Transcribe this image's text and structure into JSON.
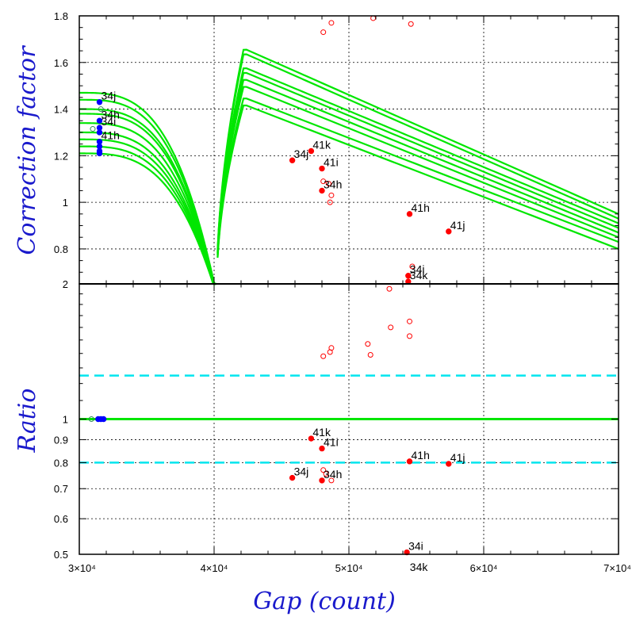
{
  "chart_data": [
    {
      "type": "scatter",
      "panel": "top",
      "ylabel": "Correction factor",
      "ylim": [
        0.65,
        1.8
      ],
      "yticks": [
        0.8,
        1,
        1.2,
        1.4,
        1.6,
        1.8
      ],
      "ytick_labels": [
        "0.8",
        "1",
        "1.2",
        "1.4",
        "1.6",
        "1.8"
      ],
      "grid": true,
      "colors": {
        "curve": "#00e600",
        "red": "#ff0000",
        "blue": "#0000ff",
        "teal": "#2e8b57"
      },
      "curve_band": {
        "asymptote_x": 40200,
        "left_start_x": 30000,
        "peak_x": 42200,
        "right_end_x": 70000,
        "left_start_values": [
          1.21,
          1.24,
          1.27,
          1.3,
          1.34,
          1.38,
          1.4,
          1.44,
          1.47
        ],
        "peak_values": [
          1.42,
          1.45,
          1.5,
          1.53,
          1.56,
          1.58,
          1.64,
          1.66
        ],
        "end_values": [
          0.8,
          0.83,
          0.85,
          0.87,
          0.89,
          0.91,
          0.93,
          0.95
        ]
      },
      "labeled_points": [
        {
          "x": 31500,
          "y": 1.43,
          "label": "34j",
          "color": "blue"
        },
        {
          "x": 31500,
          "y": 1.35,
          "label": "34h",
          "color": "blue"
        },
        {
          "x": 31500,
          "y": 1.32,
          "label": "34i",
          "color": "blue"
        },
        {
          "x": 31500,
          "y": 1.26,
          "label": "41h",
          "color": "blue"
        },
        {
          "x": 45800,
          "y": 1.18,
          "label": "34j",
          "color": "red"
        },
        {
          "x": 47200,
          "y": 1.22,
          "label": "41k",
          "color": "red"
        },
        {
          "x": 48000,
          "y": 1.145,
          "label": "41i",
          "color": "red"
        },
        {
          "x": 48000,
          "y": 1.05,
          "label": "34h",
          "color": "red"
        },
        {
          "x": 54500,
          "y": 0.95,
          "label": "41h",
          "color": "red"
        },
        {
          "x": 57400,
          "y": 0.875,
          "label": "41j",
          "color": "red"
        },
        {
          "x": 54400,
          "y": 0.685,
          "label": "34i",
          "color": "red"
        },
        {
          "x": 54400,
          "y": 0.66,
          "label": "34k",
          "color": "red"
        }
      ],
      "filled_points": [
        {
          "x": 31500,
          "y": 1.24,
          "color": "blue"
        },
        {
          "x": 31500,
          "y": 1.22,
          "color": "blue"
        },
        {
          "x": 31500,
          "y": 1.21,
          "color": "blue"
        },
        {
          "x": 31500,
          "y": 1.3,
          "color": "blue"
        }
      ],
      "open_points": [
        {
          "x": 31000,
          "y": 1.315,
          "color": "teal"
        },
        {
          "x": 31600,
          "y": 1.4,
          "color": "teal"
        },
        {
          "x": 48100,
          "y": 1.73,
          "color": "red"
        },
        {
          "x": 48700,
          "y": 1.77,
          "color": "red"
        },
        {
          "x": 51800,
          "y": 1.79,
          "color": "red"
        },
        {
          "x": 54600,
          "y": 1.765,
          "color": "red"
        },
        {
          "x": 48100,
          "y": 1.09,
          "color": "red"
        },
        {
          "x": 48500,
          "y": 1.08,
          "color": "red"
        },
        {
          "x": 48700,
          "y": 1.03,
          "color": "red"
        },
        {
          "x": 48600,
          "y": 1.0,
          "color": "red"
        },
        {
          "x": 54700,
          "y": 0.725,
          "color": "red"
        }
      ]
    },
    {
      "type": "scatter",
      "panel": "bottom",
      "xlabel": "Gap (count)",
      "ylabel": "Ratio",
      "xlim": [
        30000,
        70000
      ],
      "xticks": [
        30000,
        40000,
        50000,
        60000,
        70000
      ],
      "xtick_labels": [
        "3×10⁴",
        "4×10⁴",
        "5×10⁴",
        "6×10⁴",
        "7×10⁴"
      ],
      "ylim": [
        0.5,
        2
      ],
      "ylog": true,
      "yticks": [
        0.5,
        0.6,
        0.7,
        0.8,
        0.9,
        1,
        2
      ],
      "ytick_labels": [
        "0.5",
        "0.6",
        "0.7",
        "0.8",
        "0.9",
        "1",
        "2"
      ],
      "grid": true,
      "unity_line": 1,
      "dashed_lines": [
        1.25,
        0.8
      ],
      "colors": {
        "unity": "#00e600",
        "dashed": "#00e5ee",
        "red": "#ff0000",
        "blue": "#0000ff",
        "teal": "#2e8b57"
      },
      "labeled_points": [
        {
          "x": 47200,
          "y": 0.905,
          "label": "41k",
          "color": "red"
        },
        {
          "x": 48000,
          "y": 0.86,
          "label": "41i",
          "color": "red"
        },
        {
          "x": 54500,
          "y": 0.805,
          "label": "41h",
          "color": "red"
        },
        {
          "x": 57400,
          "y": 0.795,
          "label": "41j",
          "color": "red"
        },
        {
          "x": 45800,
          "y": 0.74,
          "label": "34j",
          "color": "red"
        },
        {
          "x": 48000,
          "y": 0.73,
          "label": "34h",
          "color": "red"
        },
        {
          "x": 54300,
          "y": 0.505,
          "label": "34i",
          "color": "red"
        }
      ],
      "filled_points": [
        {
          "x": 31400,
          "y": 1.0,
          "color": "blue"
        },
        {
          "x": 31600,
          "y": 1.0,
          "color": "blue"
        },
        {
          "x": 31800,
          "y": 1.0,
          "color": "blue"
        }
      ],
      "open_points": [
        {
          "x": 30900,
          "y": 1.0,
          "color": "teal"
        },
        {
          "x": 53000,
          "y": 1.95,
          "color": "red"
        },
        {
          "x": 53100,
          "y": 1.6,
          "color": "red"
        },
        {
          "x": 54500,
          "y": 1.65,
          "color": "red"
        },
        {
          "x": 54500,
          "y": 1.53,
          "color": "red"
        },
        {
          "x": 51400,
          "y": 1.47,
          "color": "red"
        },
        {
          "x": 51600,
          "y": 1.39,
          "color": "red"
        },
        {
          "x": 48700,
          "y": 1.44,
          "color": "red"
        },
        {
          "x": 48600,
          "y": 1.41,
          "color": "red"
        },
        {
          "x": 48100,
          "y": 1.38,
          "color": "red"
        },
        {
          "x": 48100,
          "y": 0.77,
          "color": "red"
        },
        {
          "x": 48300,
          "y": 0.755,
          "color": "red"
        },
        {
          "x": 48700,
          "y": 0.73,
          "color": "red"
        }
      ],
      "extra_label": {
        "x": 54400,
        "text": "34k"
      }
    }
  ]
}
